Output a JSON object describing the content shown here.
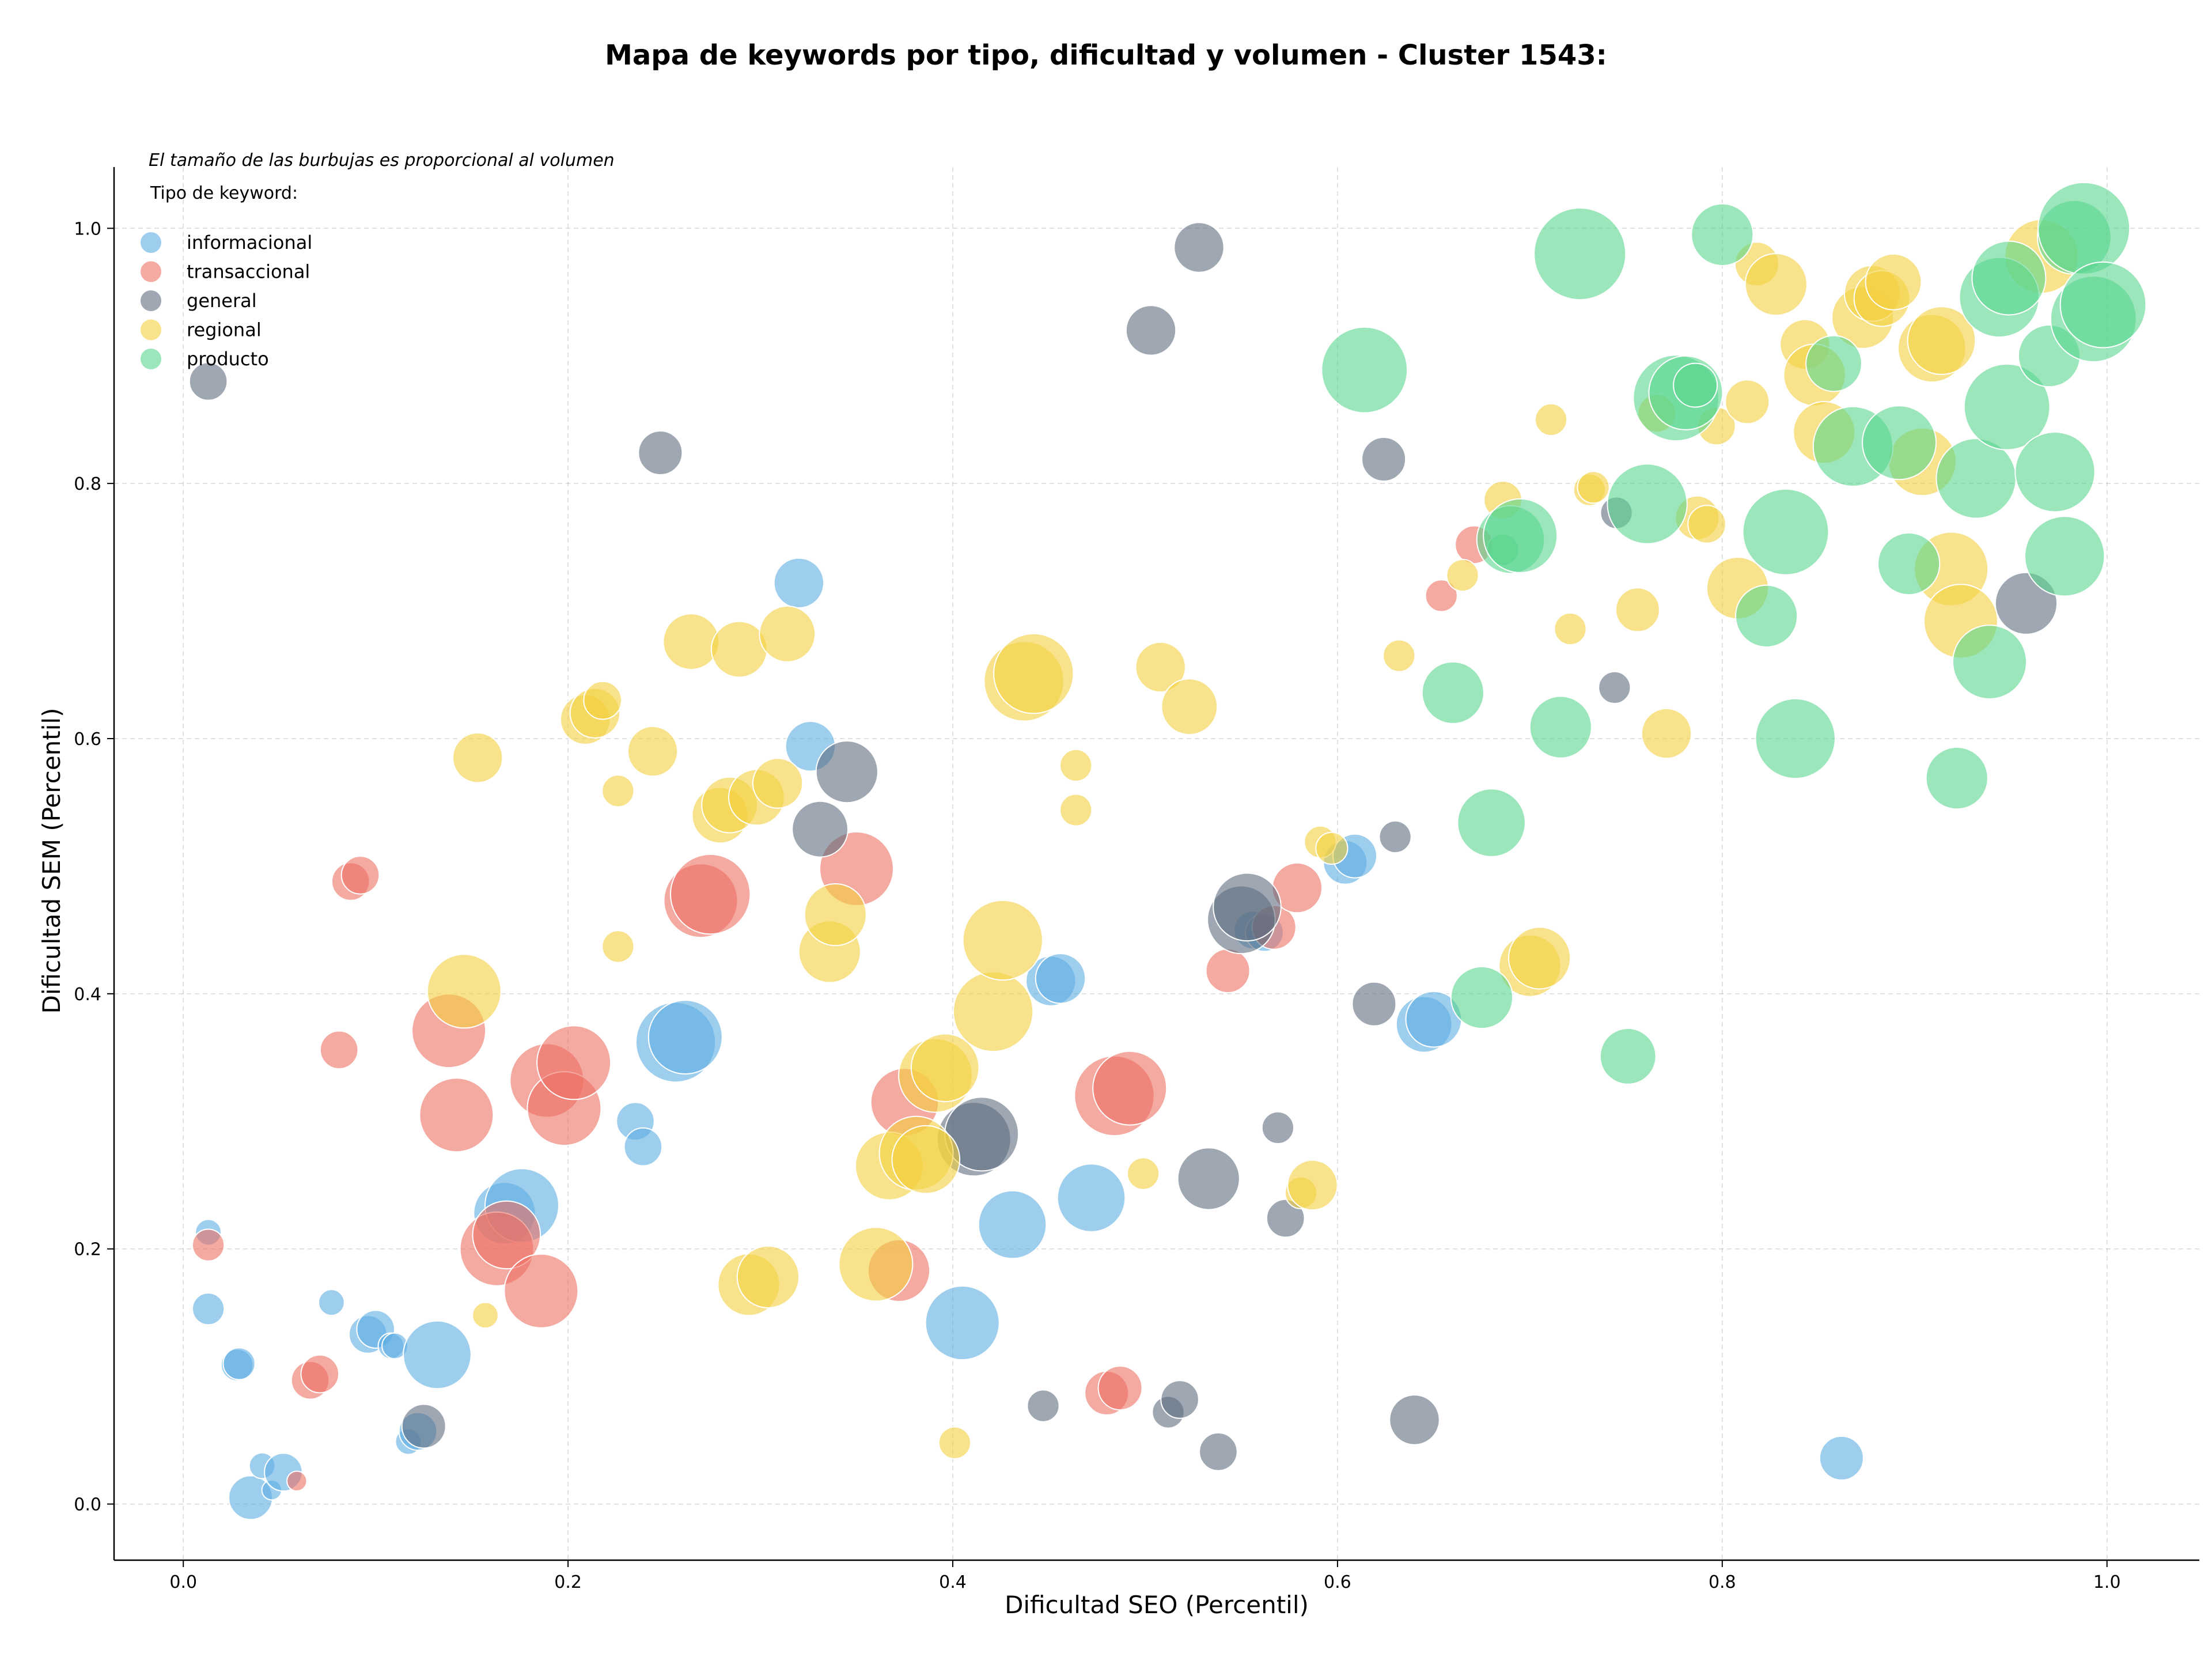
{
  "chart_data": {
    "type": "scatter",
    "title": "Mapa de keywords por tipo, dificultad y volumen - Cluster 1543:",
    "xlabel": "Dificultad SEO (Percentil)",
    "ylabel": "Dificultad SEM (Percentil)",
    "note": "El tamaño de las burbujas es proporcional al volumen",
    "legend_title": "Tipo de keyword:",
    "legend_position": "top-left",
    "xlim": [
      -0.036,
      1.048
    ],
    "ylim": [
      -0.044,
      1.048
    ],
    "xticks": [
      "0.0",
      "0.2",
      "0.4",
      "0.6",
      "0.8",
      "1.0"
    ],
    "yticks": [
      "0.0",
      "0.2",
      "0.4",
      "0.6",
      "0.8",
      "1.0"
    ],
    "grid": true,
    "series": [
      {
        "name": "informacional",
        "color": "#5DADE2",
        "points": [
          [
            0.013,
            0.213,
            2
          ],
          [
            0.013,
            0.153,
            3
          ],
          [
            0.028,
            0.109,
            3
          ],
          [
            0.029,
            0.11,
            3
          ],
          [
            0.035,
            0.005,
            5
          ],
          [
            0.041,
            0.03,
            2
          ],
          [
            0.046,
            0.011,
            1
          ],
          [
            0.052,
            0.025,
            4
          ],
          [
            0.077,
            0.158,
            2
          ],
          [
            0.096,
            0.133,
            4
          ],
          [
            0.1,
            0.137,
            4
          ],
          [
            0.108,
            0.124,
            2
          ],
          [
            0.11,
            0.124,
            2
          ],
          [
            0.117,
            0.049,
            2
          ],
          [
            0.122,
            0.057,
            4
          ],
          [
            0.132,
            0.117,
            9
          ],
          [
            0.167,
            0.228,
            8
          ],
          [
            0.176,
            0.234,
            10
          ],
          [
            0.235,
            0.3,
            4
          ],
          [
            0.239,
            0.28,
            4
          ],
          [
            0.256,
            0.362,
            11
          ],
          [
            0.261,
            0.366,
            10
          ],
          [
            0.32,
            0.722,
            6
          ],
          [
            0.326,
            0.594,
            6
          ],
          [
            0.405,
            0.142,
            10
          ],
          [
            0.431,
            0.219,
            9
          ],
          [
            0.451,
            0.41,
            6
          ],
          [
            0.456,
            0.412,
            6
          ],
          [
            0.472,
            0.24,
            9
          ],
          [
            0.556,
            0.45,
            4
          ],
          [
            0.562,
            0.448,
            4
          ],
          [
            0.604,
            0.503,
            5
          ],
          [
            0.609,
            0.508,
            5
          ],
          [
            0.645,
            0.376,
            7
          ],
          [
            0.65,
            0.38,
            7
          ],
          [
            0.862,
            0.036,
            5
          ]
        ]
      },
      {
        "name": "transaccional",
        "color": "#EC7063",
        "points": [
          [
            0.013,
            0.203,
            3
          ],
          [
            0.059,
            0.018,
            1
          ],
          [
            0.066,
            0.097,
            4
          ],
          [
            0.071,
            0.102,
            4
          ],
          [
            0.081,
            0.356,
            4
          ],
          [
            0.087,
            0.488,
            4
          ],
          [
            0.092,
            0.493,
            4
          ],
          [
            0.138,
            0.371,
            10
          ],
          [
            0.142,
            0.305,
            10
          ],
          [
            0.163,
            0.2,
            10
          ],
          [
            0.168,
            0.211,
            9
          ],
          [
            0.186,
            0.167,
            10
          ],
          [
            0.189,
            0.332,
            10
          ],
          [
            0.198,
            0.31,
            10
          ],
          [
            0.203,
            0.346,
            10
          ],
          [
            0.269,
            0.473,
            10
          ],
          [
            0.274,
            0.478,
            11
          ],
          [
            0.35,
            0.498,
            10
          ],
          [
            0.375,
            0.315,
            9
          ],
          [
            0.372,
            0.183,
            8
          ],
          [
            0.48,
            0.087,
            5
          ],
          [
            0.487,
            0.091,
            5
          ],
          [
            0.484,
            0.32,
            11
          ],
          [
            0.492,
            0.326,
            10
          ],
          [
            0.543,
            0.418,
            5
          ],
          [
            0.567,
            0.452,
            5
          ],
          [
            0.579,
            0.483,
            6
          ],
          [
            0.654,
            0.712,
            3
          ],
          [
            0.671,
            0.752,
            4
          ]
        ]
      },
      {
        "name": "general",
        "color": "#5D6D7E",
        "points": [
          [
            0.013,
            0.88,
            4
          ],
          [
            0.125,
            0.061,
            5
          ],
          [
            0.248,
            0.824,
            5
          ],
          [
            0.331,
            0.529,
            7
          ],
          [
            0.345,
            0.574,
            8
          ],
          [
            0.411,
            0.286,
            10
          ],
          [
            0.415,
            0.29,
            10
          ],
          [
            0.447,
            0.077,
            3
          ],
          [
            0.503,
            0.92,
            6
          ],
          [
            0.512,
            0.072,
            3
          ],
          [
            0.518,
            0.082,
            4
          ],
          [
            0.528,
            0.985,
            6
          ],
          [
            0.533,
            0.255,
            8
          ],
          [
            0.538,
            0.041,
            4
          ],
          [
            0.55,
            0.458,
            9
          ],
          [
            0.553,
            0.468,
            9
          ],
          [
            0.569,
            0.295,
            3
          ],
          [
            0.573,
            0.224,
            4
          ],
          [
            0.619,
            0.392,
            5
          ],
          [
            0.624,
            0.819,
            5
          ],
          [
            0.63,
            0.523,
            3
          ],
          [
            0.64,
            0.066,
            6
          ],
          [
            0.744,
            0.64,
            3
          ],
          [
            0.745,
            0.777,
            3
          ],
          [
            0.958,
            0.706,
            8
          ]
        ]
      },
      {
        "name": "regional",
        "color": "#F4D03F",
        "points": [
          [
            0.146,
            0.402,
            10
          ],
          [
            0.153,
            0.585,
            6
          ],
          [
            0.157,
            0.148,
            2
          ],
          [
            0.209,
            0.615,
            6
          ],
          [
            0.214,
            0.62,
            6
          ],
          [
            0.218,
            0.63,
            4
          ],
          [
            0.226,
            0.559,
            3
          ],
          [
            0.226,
            0.437,
            3
          ],
          [
            0.244,
            0.59,
            6
          ],
          [
            0.264,
            0.676,
            7
          ],
          [
            0.279,
            0.54,
            7
          ],
          [
            0.284,
            0.548,
            7
          ],
          [
            0.289,
            0.67,
            7
          ],
          [
            0.294,
            0.172,
            8
          ],
          [
            0.298,
            0.554,
            7
          ],
          [
            0.304,
            0.178,
            8
          ],
          [
            0.309,
            0.565,
            6
          ],
          [
            0.314,
            0.682,
            7
          ],
          [
            0.336,
            0.433,
            8
          ],
          [
            0.339,
            0.462,
            8
          ],
          [
            0.36,
            0.188,
            10
          ],
          [
            0.367,
            0.265,
            9
          ],
          [
            0.381,
            0.275,
            10
          ],
          [
            0.386,
            0.27,
            9
          ],
          [
            0.391,
            0.336,
            10
          ],
          [
            0.396,
            0.342,
            9
          ],
          [
            0.401,
            0.048,
            3
          ],
          [
            0.421,
            0.386,
            11
          ],
          [
            0.426,
            0.442,
            11
          ],
          [
            0.437,
            0.645,
            11
          ],
          [
            0.442,
            0.651,
            11
          ],
          [
            0.464,
            0.579,
            3
          ],
          [
            0.464,
            0.544,
            3
          ],
          [
            0.499,
            0.259,
            3
          ],
          [
            0.508,
            0.656,
            6
          ],
          [
            0.523,
            0.625,
            7
          ],
          [
            0.581,
            0.244,
            3
          ],
          [
            0.587,
            0.25,
            6
          ],
          [
            0.591,
            0.519,
            3
          ],
          [
            0.597,
            0.514,
            3
          ],
          [
            0.632,
            0.665,
            3
          ],
          [
            0.665,
            0.728,
            3
          ],
          [
            0.686,
            0.787,
            4
          ],
          [
            0.7,
            0.422,
            8
          ],
          [
            0.705,
            0.428,
            8
          ],
          [
            0.711,
            0.85,
            3
          ],
          [
            0.721,
            0.686,
            3
          ],
          [
            0.731,
            0.795,
            3
          ],
          [
            0.733,
            0.797,
            3
          ],
          [
            0.756,
            0.701,
            5
          ],
          [
            0.766,
            0.855,
            4
          ],
          [
            0.771,
            0.604,
            6
          ],
          [
            0.787,
            0.773,
            5
          ],
          [
            0.792,
            0.768,
            4
          ],
          [
            0.797,
            0.845,
            4
          ],
          [
            0.808,
            0.718,
            8
          ],
          [
            0.813,
            0.864,
            5
          ],
          [
            0.818,
            0.972,
            5
          ],
          [
            0.828,
            0.956,
            8
          ],
          [
            0.843,
            0.909,
            6
          ],
          [
            0.848,
            0.885,
            8
          ],
          [
            0.853,
            0.84,
            8
          ],
          [
            0.873,
            0.93,
            8
          ],
          [
            0.878,
            0.949,
            7
          ],
          [
            0.883,
            0.945,
            7
          ],
          [
            0.889,
            0.958,
            7
          ],
          [
            0.904,
            0.817,
            9
          ],
          [
            0.909,
            0.906,
            9
          ],
          [
            0.914,
            0.912,
            9
          ],
          [
            0.919,
            0.733,
            10
          ],
          [
            0.924,
            0.692,
            10
          ],
          [
            0.966,
            0.978,
            10
          ]
        ]
      },
      {
        "name": "producto",
        "color": "#58D68D",
        "points": [
          [
            0.614,
            0.889,
            12
          ],
          [
            0.66,
            0.636,
            8
          ],
          [
            0.675,
            0.397,
            8
          ],
          [
            0.68,
            0.534,
            9
          ],
          [
            0.686,
            0.748,
            3
          ],
          [
            0.69,
            0.756,
            9
          ],
          [
            0.695,
            0.759,
            10
          ],
          [
            0.716,
            0.609,
            8
          ],
          [
            0.726,
            0.98,
            13
          ],
          [
            0.751,
            0.351,
            7
          ],
          [
            0.761,
            0.784,
            11
          ],
          [
            0.776,
            0.867,
            12
          ],
          [
            0.781,
            0.871,
            10
          ],
          [
            0.786,
            0.877,
            5
          ],
          [
            0.8,
            0.995,
            8
          ],
          [
            0.823,
            0.696,
            8
          ],
          [
            0.833,
            0.762,
            12
          ],
          [
            0.838,
            0.6,
            11
          ],
          [
            0.858,
            0.894,
            7
          ],
          [
            0.868,
            0.829,
            11
          ],
          [
            0.892,
            0.832,
            10
          ],
          [
            0.897,
            0.737,
            8
          ],
          [
            0.922,
            0.569,
            8
          ],
          [
            0.932,
            0.804,
            11
          ],
          [
            0.939,
            0.66,
            10
          ],
          [
            0.944,
            0.946,
            11
          ],
          [
            0.949,
            0.961,
            10
          ],
          [
            0.948,
            0.86,
            12
          ],
          [
            0.97,
            0.9,
            8
          ],
          [
            0.973,
            0.809,
            11
          ],
          [
            0.978,
            0.743,
            11
          ],
          [
            0.983,
            0.993,
            10
          ],
          [
            0.988,
            1.0,
            13
          ],
          [
            0.993,
            0.929,
            12
          ],
          [
            0.998,
            0.94,
            12
          ]
        ]
      }
    ]
  }
}
